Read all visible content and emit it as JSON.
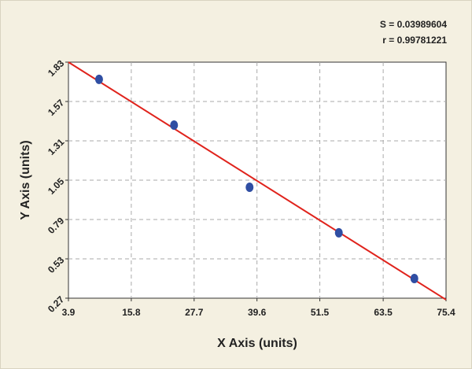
{
  "chart_data": {
    "type": "scatter",
    "x_label": "X Axis (units)",
    "y_label": "Y Axis (units)",
    "annotations": [
      "S = 0.03989604",
      "r = 0.99781221"
    ],
    "x": [
      9.7,
      23.9,
      38.2,
      55.1,
      69.4
    ],
    "y": [
      1.716,
      1.414,
      1.003,
      0.702,
      0.4
    ],
    "color": "#2f4ea3",
    "fit": {
      "x": [
        3.9,
        75.4
      ],
      "y": [
        1.83,
        0.26
      ],
      "color": "#e0231c"
    },
    "xlim": [
      3.9,
      75.4
    ],
    "ylim": [
      0.27,
      1.83
    ],
    "xticks": [
      3.9,
      15.8,
      27.7,
      39.6,
      51.5,
      63.5,
      75.4
    ],
    "yticks": [
      0.27,
      0.53,
      0.79,
      1.05,
      1.31,
      1.57,
      1.83
    ],
    "grid": true
  }
}
